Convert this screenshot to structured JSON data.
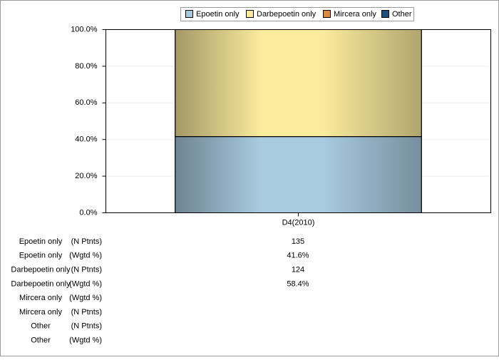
{
  "chart_data": {
    "type": "stacked_bar",
    "categories": [
      "D4(2010)"
    ],
    "series": [
      {
        "name": "Epoetin only",
        "color": "#a9cbe0",
        "values": [
          41.6
        ]
      },
      {
        "name": "Darbepoetin only",
        "color": "#fbeb9d",
        "values": [
          58.4
        ]
      },
      {
        "name": "Mircera only",
        "color": "#d98c40",
        "values": [
          null
        ]
      },
      {
        "name": "Other",
        "color": "#1f4e79",
        "values": [
          null
        ]
      }
    ],
    "ylim": [
      0,
      100
    ],
    "yticks": [
      {
        "value": 0,
        "label": "0.0%"
      },
      {
        "value": 20,
        "label": "20.0%"
      },
      {
        "value": 40,
        "label": "40.0%"
      },
      {
        "value": 60,
        "label": "60.0%"
      },
      {
        "value": 80,
        "label": "80.0%"
      },
      {
        "value": 100,
        "label": "100.0%"
      }
    ],
    "grid": true,
    "legend": "top"
  },
  "table": {
    "rows": [
      {
        "label": "Epoetin only",
        "measure": "(N Ptnts)",
        "value": "135"
      },
      {
        "label": "Epoetin only",
        "measure": "(Wgtd %)",
        "value": "41.6%"
      },
      {
        "label": "Darbepoetin only",
        "measure": "(N Ptnts)",
        "value": "124"
      },
      {
        "label": "Darbepoetin only",
        "measure": "(Wgtd %)",
        "value": "58.4%"
      },
      {
        "label": "Mircera only",
        "measure": "(Wgtd %)",
        "value": null
      },
      {
        "label": "Mircera only",
        "measure": "(N Ptnts)",
        "value": null
      },
      {
        "label": "Other",
        "measure": "(N Ptnts)",
        "value": null
      },
      {
        "label": "Other",
        "measure": "(Wgtd %)",
        "value": null
      }
    ]
  }
}
